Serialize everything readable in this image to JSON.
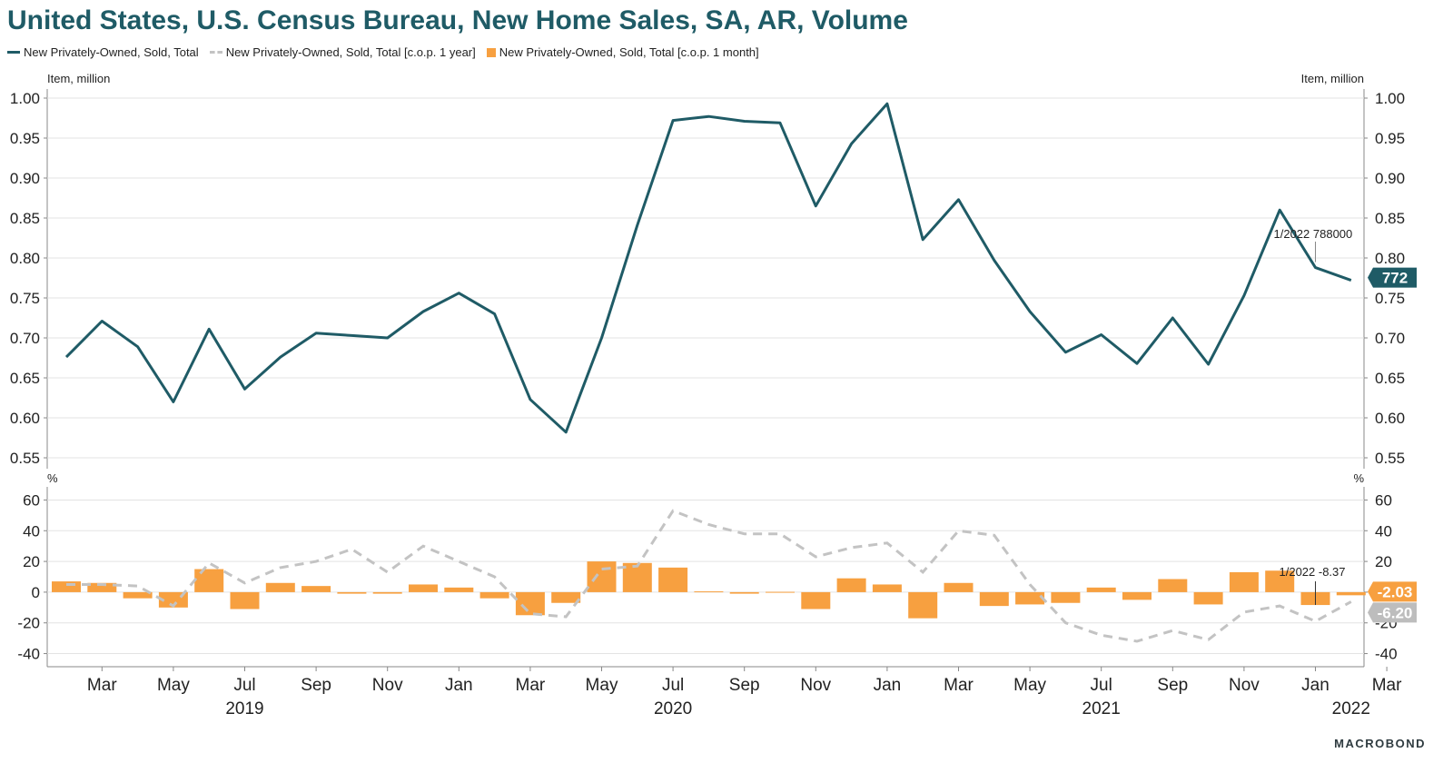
{
  "title": "United States, U.S. Census Bureau, New Home Sales, SA, AR, Volume",
  "legend": [
    {
      "label": "New Privately-Owned, Sold, Total",
      "style": "line",
      "color": "#1f5b66"
    },
    {
      "label": "New Privately-Owned, Sold, Total [c.o.p. 1 year]",
      "style": "dash",
      "color": "#c3c3c3"
    },
    {
      "label": "New Privately-Owned, Sold, Total [c.o.p. 1 month]",
      "style": "bar",
      "color": "#f7a040"
    }
  ],
  "logo": "MACROBOND",
  "chart_data": [
    {
      "type": "line",
      "panel": "top",
      "ylabel_left": "Item, million",
      "ylabel_right": "Item, million",
      "ylim": [
        0.55,
        1.0
      ],
      "yticks": [
        "0.55",
        "0.60",
        "0.65",
        "0.70",
        "0.75",
        "0.80",
        "0.85",
        "0.90",
        "0.95",
        "1.00"
      ],
      "x": [
        "2019-02",
        "2019-03",
        "2019-04",
        "2019-05",
        "2019-06",
        "2019-07",
        "2019-08",
        "2019-09",
        "2019-10",
        "2019-11",
        "2019-12",
        "2020-01",
        "2020-02",
        "2020-03",
        "2020-04",
        "2020-05",
        "2020-06",
        "2020-07",
        "2020-08",
        "2020-09",
        "2020-10",
        "2020-11",
        "2020-12",
        "2021-01",
        "2021-02",
        "2021-03",
        "2021-04",
        "2021-05",
        "2021-06",
        "2021-07",
        "2021-08",
        "2021-09",
        "2021-10",
        "2021-11",
        "2021-12",
        "2022-01",
        "2022-02"
      ],
      "series": [
        {
          "name": "New Privately-Owned, Sold, Total",
          "values": [
            0.676,
            0.721,
            0.689,
            0.62,
            0.711,
            0.636,
            0.676,
            0.706,
            0.703,
            0.7,
            0.733,
            0.756,
            0.73,
            0.623,
            0.582,
            0.7,
            0.841,
            0.972,
            0.977,
            0.971,
            0.969,
            0.865,
            0.943,
            0.993,
            0.823,
            0.873,
            0.797,
            0.733,
            0.682,
            0.704,
            0.668,
            0.725,
            0.667,
            0.753,
            0.86,
            0.788,
            0.772
          ]
        }
      ],
      "annotation": {
        "x": "2022-01",
        "text": "1/2022 788000"
      },
      "last_value_label": "772"
    },
    {
      "type": "bar",
      "panel": "bottom",
      "ylabel_left": "%",
      "ylabel_right": "%",
      "ylim": [
        -45,
        65
      ],
      "yticks": [
        "-40",
        "-20",
        "0",
        "20",
        "40",
        "60"
      ],
      "x": [
        "2019-02",
        "2019-03",
        "2019-04",
        "2019-05",
        "2019-06",
        "2019-07",
        "2019-08",
        "2019-09",
        "2019-10",
        "2019-11",
        "2019-12",
        "2020-01",
        "2020-02",
        "2020-03",
        "2020-04",
        "2020-05",
        "2020-06",
        "2020-07",
        "2020-08",
        "2020-09",
        "2020-10",
        "2020-11",
        "2020-12",
        "2021-01",
        "2021-02",
        "2021-03",
        "2021-04",
        "2021-05",
        "2021-06",
        "2021-07",
        "2021-08",
        "2021-09",
        "2021-10",
        "2021-11",
        "2021-12",
        "2022-01",
        "2022-02"
      ],
      "series": [
        {
          "name": "New Privately-Owned, Sold, Total [c.o.p. 1 month]",
          "style": "bar",
          "values": [
            7,
            6,
            -4,
            -10,
            15,
            -11,
            6,
            4,
            -1,
            -1,
            5,
            3,
            -4,
            -15,
            -7,
            20,
            19,
            16,
            0.5,
            -1,
            0.2,
            -11,
            9,
            5,
            -17,
            6,
            -9,
            -8,
            -7,
            3,
            -5,
            8.5,
            -8,
            13,
            14,
            -8.37,
            -2.03
          ]
        },
        {
          "name": "New Privately-Owned, Sold, Total [c.o.p. 1 year]",
          "style": "dash",
          "values": [
            5,
            5,
            4,
            -9,
            19,
            6,
            16,
            20,
            28,
            13,
            30,
            20,
            10,
            -14,
            -16,
            15,
            17,
            53,
            44,
            38,
            38,
            23,
            29,
            32,
            13,
            40,
            37,
            5,
            -20,
            -28,
            -32,
            -25,
            -31,
            -13,
            -9,
            -19,
            -6.2
          ]
        }
      ],
      "annotation": {
        "x": "2022-01",
        "text": "1/2022 -8.37"
      },
      "last_value_labels": [
        "-2.03",
        "-6.20"
      ]
    }
  ],
  "x_axis": {
    "month_labels": [
      {
        "x": "2019-03",
        "label": "Mar"
      },
      {
        "x": "2019-05",
        "label": "May"
      },
      {
        "x": "2019-07",
        "label": "Jul"
      },
      {
        "x": "2019-09",
        "label": "Sep"
      },
      {
        "x": "2019-11",
        "label": "Nov"
      },
      {
        "x": "2020-01",
        "label": "Jan"
      },
      {
        "x": "2020-03",
        "label": "Mar"
      },
      {
        "x": "2020-05",
        "label": "May"
      },
      {
        "x": "2020-07",
        "label": "Jul"
      },
      {
        "x": "2020-09",
        "label": "Sep"
      },
      {
        "x": "2020-11",
        "label": "Nov"
      },
      {
        "x": "2021-01",
        "label": "Jan"
      },
      {
        "x": "2021-03",
        "label": "Mar"
      },
      {
        "x": "2021-05",
        "label": "May"
      },
      {
        "x": "2021-07",
        "label": "Jul"
      },
      {
        "x": "2021-09",
        "label": "Sep"
      },
      {
        "x": "2021-11",
        "label": "Nov"
      },
      {
        "x": "2022-01",
        "label": "Jan"
      },
      {
        "x": "2022-03",
        "label": "Mar"
      }
    ],
    "year_labels": [
      {
        "x": "2019-07",
        "label": "2019"
      },
      {
        "x": "2020-07",
        "label": "2020"
      },
      {
        "x": "2021-07",
        "label": "2021"
      },
      {
        "x": "2022-02",
        "label": "2022"
      }
    ]
  },
  "colors": {
    "line": "#1f5b66",
    "bar": "#f7a040",
    "dash": "#c3c3c3",
    "grid": "#e3e3e3"
  }
}
